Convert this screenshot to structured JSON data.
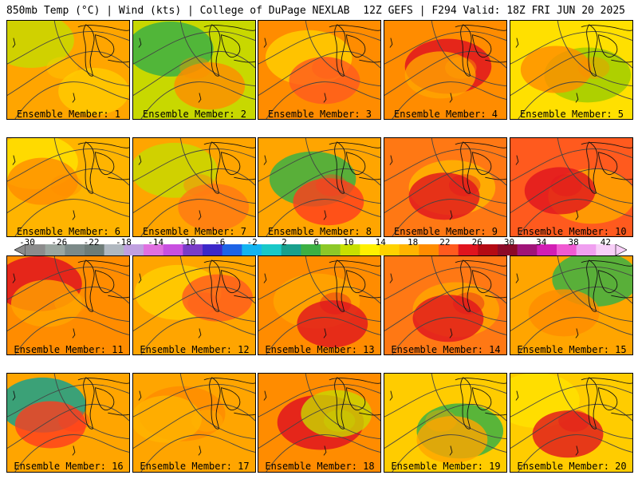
{
  "header": {
    "left": "850mb Temp (°C) | Wind (kts) | College of DuPage NEXLAB",
    "right": "12Z GEFS | F294 Valid: 18Z FRI JUN 20 2025"
  },
  "members": [
    {
      "label": "Ensemble Member: 1",
      "base": "#ffa500",
      "blob1": "#c8d800",
      "blob2": "#ffcc00"
    },
    {
      "label": "Ensemble Member: 2",
      "base": "#c8d800",
      "blob1": "#3cb043",
      "blob2": "#ff8c00"
    },
    {
      "label": "Ensemble Member: 3",
      "base": "#ff8c00",
      "blob1": "#ffcc00",
      "blob2": "#ff5a1e"
    },
    {
      "label": "Ensemble Member: 4",
      "base": "#ff8c00",
      "blob1": "#e0141e",
      "blob2": "#ffa500"
    },
    {
      "label": "Ensemble Member: 5",
      "base": "#ffe000",
      "blob1": "#a0cc00",
      "blob2": "#ff8c00"
    },
    {
      "label": "Ensemble Member: 6",
      "base": "#ffb400",
      "blob1": "#ffe000",
      "blob2": "#ff8c00"
    },
    {
      "label": "Ensemble Member: 7",
      "base": "#ffa500",
      "blob1": "#c8d800",
      "blob2": "#ff7814"
    },
    {
      "label": "Ensemble Member: 8",
      "base": "#ffa500",
      "blob1": "#3cb043",
      "blob2": "#ff3c1e"
    },
    {
      "label": "Ensemble Member: 9",
      "base": "#ff7814",
      "blob1": "#ffb400",
      "blob2": "#e0141e"
    },
    {
      "label": "Ensemble Member: 10",
      "base": "#ff5a1e",
      "blob1": "#ffa500",
      "blob2": "#e0141e"
    },
    {
      "label": "Ensemble Member: 11",
      "base": "#ff8c00",
      "blob1": "#e0141e",
      "blob2": "#ffa500"
    },
    {
      "label": "Ensemble Member: 12",
      "base": "#ffa500",
      "blob1": "#ffcc00",
      "blob2": "#ff5a1e"
    },
    {
      "label": "Ensemble Member: 13",
      "base": "#ff8c00",
      "blob1": "#ffa500",
      "blob2": "#e0141e"
    },
    {
      "label": "Ensemble Member: 14",
      "base": "#ff7814",
      "blob1": "#ffa500",
      "blob2": "#e0141e"
    },
    {
      "label": "Ensemble Member: 15",
      "base": "#ffa500",
      "blob1": "#3cb043",
      "blob2": "#ff8c00"
    },
    {
      "label": "Ensemble Member: 16",
      "base": "#ffa500",
      "blob1": "#19a08c",
      "blob2": "#ff3c1e"
    },
    {
      "label": "Ensemble Member: 17",
      "base": "#ffa500",
      "blob1": "#ff8c00",
      "blob2": "#ffb400"
    },
    {
      "label": "Ensemble Member: 18",
      "base": "#ff8c00",
      "blob1": "#e0141e",
      "blob2": "#c8d800"
    },
    {
      "label": "Ensemble Member: 19",
      "base": "#ffcc00",
      "blob1": "#3cb043",
      "blob2": "#ffa500"
    },
    {
      "label": "Ensemble Member: 20",
      "base": "#ffcc00",
      "blob1": "#ffe000",
      "blob2": "#e0141e"
    }
  ],
  "color_scale": {
    "ticks": [
      "-30",
      "-26",
      "-22",
      "-18",
      "-14",
      "-10",
      "-6",
      "-2",
      "2",
      "6",
      "10",
      "14",
      "18",
      "22",
      "26",
      "30",
      "34",
      "38",
      "42"
    ],
    "colors": [
      "#8c8c8c",
      "#9aa6a0",
      "#7c8a88",
      "#6e7c78",
      "#b0b8c0",
      "#c0a0e0",
      "#e070e0",
      "#c850e0",
      "#7a3cc8",
      "#3c28c8",
      "#1e64e6",
      "#14b4f0",
      "#19c8c8",
      "#19a08c",
      "#3cb043",
      "#8cc828",
      "#c8e000",
      "#fff000",
      "#ffd200",
      "#ffb400",
      "#ff8c00",
      "#ff5a1e",
      "#e0141e",
      "#b40a14",
      "#8c0a28",
      "#a01478",
      "#d21eb4",
      "#f05ad2",
      "#f0a0f0",
      "#f8d0f8"
    ]
  }
}
